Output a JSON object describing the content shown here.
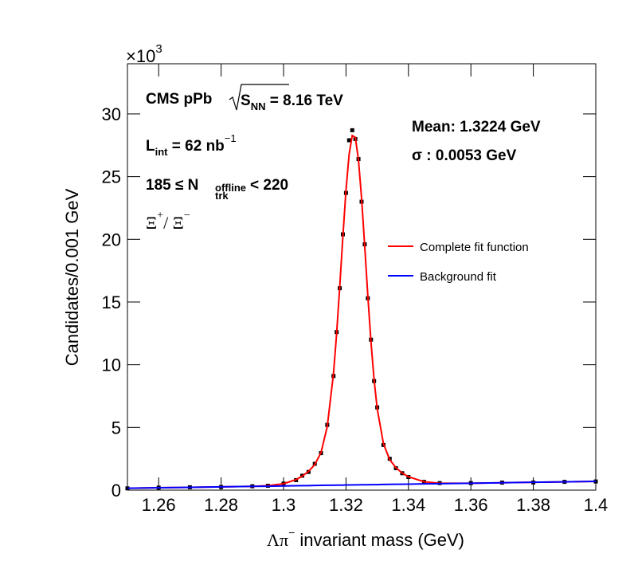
{
  "chart_data": {
    "type": "line",
    "y_axis_label": "Candidates/0.001 GeV",
    "x_axis_label": {
      "symbol": "Λπ",
      "sup": "−",
      "text": " invariant mass (GeV)"
    },
    "y_multiplier": {
      "base": "×10",
      "exp": "3"
    },
    "annotations": {
      "cms": {
        "text": "CMS pPb",
        "root_var": "S",
        "root_sub": "NN",
        "energy": " =  8.16 TeV"
      },
      "lumi": {
        "text": "L",
        "sub": "int",
        "rest": " = 62 nb",
        "sup": "−1"
      },
      "mult": {
        "text": "185 ≤  N",
        "sub": "trk",
        "sup": "offline",
        "rest": "< 220"
      },
      "particle": {
        "a": "Ξ",
        "a_sup": "+",
        "sep": "/ Ξ",
        "b_sup": "−"
      },
      "mean": "Mean: 1.3224 GeV",
      "sigma": "σ : 0.0053 GeV"
    },
    "x": [
      1.25,
      1.26,
      1.27,
      1.28,
      1.29,
      1.295,
      1.3,
      1.304,
      1.306,
      1.308,
      1.31,
      1.312,
      1.314,
      1.316,
      1.317,
      1.318,
      1.319,
      1.32,
      1.321,
      1.322,
      1.323,
      1.324,
      1.325,
      1.326,
      1.327,
      1.328,
      1.329,
      1.33,
      1.332,
      1.334,
      1.336,
      1.338,
      1.34,
      1.345,
      1.35,
      1.36,
      1.37,
      1.38,
      1.39,
      1.4
    ],
    "series": [
      {
        "style": "points",
        "color": "#000000",
        "values": [
          0.14,
          0.2,
          0.23,
          0.25,
          0.31,
          0.35,
          0.52,
          0.8,
          1.15,
          1.45,
          2.1,
          2.95,
          5.2,
          9.1,
          12.6,
          16.1,
          20.4,
          23.7,
          27.9,
          28.7,
          28.0,
          26.4,
          23.0,
          19.6,
          15.3,
          12.0,
          8.7,
          6.6,
          3.6,
          2.5,
          1.75,
          1.35,
          1.05,
          0.66,
          0.56,
          0.56,
          0.6,
          0.61,
          0.66,
          0.69
        ]
      },
      {
        "style": "line",
        "name": "Complete fit function",
        "color": "#ff0000",
        "values": [
          0.15,
          0.19,
          0.22,
          0.26,
          0.3,
          0.36,
          0.51,
          0.84,
          1.12,
          1.49,
          2.04,
          2.99,
          5.07,
          9.3,
          12.48,
          16.23,
          20.21,
          23.92,
          26.78,
          28.28,
          28.12,
          26.32,
          23.26,
          19.44,
          15.47,
          11.84,
          8.8,
          6.49,
          3.7,
          2.43,
          1.79,
          1.36,
          1.07,
          0.67,
          0.55,
          0.55,
          0.59,
          0.63,
          0.66,
          0.7
        ]
      },
      {
        "style": "line",
        "name": "Background fit",
        "color": "#0000ff",
        "values": [
          0.15,
          0.19,
          0.22,
          0.26,
          0.3,
          0.31,
          0.33,
          0.35,
          0.36,
          0.36,
          0.37,
          0.38,
          0.39,
          0.39,
          0.4,
          0.4,
          0.4,
          0.41,
          0.41,
          0.41,
          0.42,
          0.42,
          0.43,
          0.43,
          0.43,
          0.44,
          0.44,
          0.44,
          0.45,
          0.46,
          0.47,
          0.47,
          0.48,
          0.5,
          0.52,
          0.55,
          0.59,
          0.63,
          0.66,
          0.7
        ]
      }
    ],
    "xlim": [
      1.25,
      1.4
    ],
    "ylim": [
      0,
      34
    ],
    "xticks": [
      1.26,
      1.28,
      1.3,
      1.32,
      1.34,
      1.36,
      1.38,
      1.4
    ],
    "yticks": [
      0,
      5,
      10,
      15,
      20,
      25,
      30
    ],
    "grid": false
  }
}
